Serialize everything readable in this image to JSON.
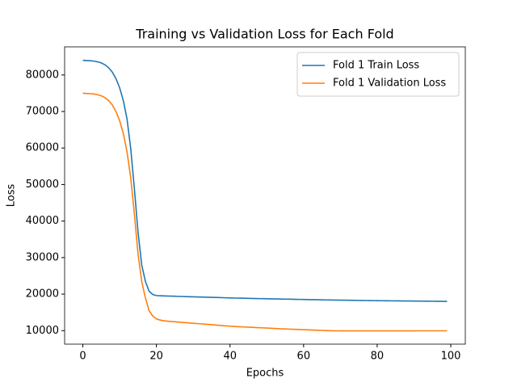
{
  "chart_data": {
    "type": "line",
    "title": "Training vs Validation Loss for Each Fold",
    "xlabel": "Epochs",
    "ylabel": "Loss",
    "x": [
      0,
      1,
      2,
      3,
      4,
      5,
      6,
      7,
      8,
      9,
      10,
      11,
      12,
      13,
      14,
      15,
      16,
      17,
      18,
      19,
      20,
      21,
      22,
      23,
      24,
      25,
      26,
      27,
      28,
      29,
      30,
      31,
      32,
      33,
      34,
      35,
      36,
      37,
      38,
      39,
      40,
      41,
      42,
      43,
      44,
      45,
      46,
      47,
      48,
      49,
      50,
      51,
      52,
      53,
      54,
      55,
      56,
      57,
      58,
      59,
      60,
      61,
      62,
      63,
      64,
      65,
      66,
      67,
      68,
      69,
      70,
      71,
      72,
      73,
      74,
      75,
      76,
      77,
      78,
      79,
      80,
      81,
      82,
      83,
      84,
      85,
      86,
      87,
      88,
      89,
      90,
      91,
      92,
      93,
      94,
      95,
      96,
      97,
      98,
      99
    ],
    "series": [
      {
        "name": "Fold 1 Train Loss",
        "color": "#1f77b4",
        "values": [
          84000,
          83950,
          83900,
          83800,
          83600,
          83300,
          82800,
          82000,
          80800,
          79000,
          76500,
          73000,
          68000,
          60000,
          49000,
          37000,
          28000,
          23500,
          20800,
          19900,
          19600,
          19550,
          19500,
          19470,
          19440,
          19410,
          19380,
          19350,
          19320,
          19290,
          19260,
          19230,
          19200,
          19170,
          19140,
          19110,
          19080,
          19050,
          19020,
          18990,
          18960,
          18935,
          18910,
          18885,
          18860,
          18835,
          18810,
          18790,
          18770,
          18750,
          18730,
          18710,
          18690,
          18670,
          18650,
          18630,
          18610,
          18590,
          18570,
          18550,
          18530,
          18510,
          18490,
          18470,
          18450,
          18430,
          18410,
          18395,
          18380,
          18365,
          18350,
          18335,
          18320,
          18305,
          18290,
          18275,
          18260,
          18245,
          18230,
          18215,
          18200,
          18190,
          18180,
          18170,
          18160,
          18150,
          18140,
          18130,
          18120,
          18110,
          18100,
          18090,
          18080,
          18070,
          18060,
          18050,
          18040,
          18030,
          18020,
          18010
        ]
      },
      {
        "name": "Fold 1 Validation Loss",
        "color": "#ff7f0e",
        "values": [
          75000,
          74950,
          74900,
          74800,
          74600,
          74300,
          73800,
          73000,
          71800,
          70000,
          67500,
          64000,
          59000,
          52000,
          42000,
          31000,
          23500,
          19000,
          15500,
          14000,
          13200,
          12900,
          12700,
          12600,
          12500,
          12420,
          12340,
          12260,
          12180,
          12100,
          12020,
          11940,
          11860,
          11780,
          11700,
          11620,
          11540,
          11460,
          11380,
          11300,
          11220,
          11160,
          11100,
          11050,
          11000,
          10950,
          10900,
          10850,
          10800,
          10750,
          10700,
          10650,
          10600,
          10550,
          10500,
          10460,
          10420,
          10380,
          10340,
          10300,
          10260,
          10220,
          10180,
          10140,
          10100,
          10060,
          10020,
          9990,
          9970,
          9950,
          9940,
          9930,
          9930,
          9930,
          9930,
          9930,
          9935,
          9935,
          9935,
          9935,
          9935,
          9940,
          9940,
          9940,
          9940,
          9940,
          9945,
          9945,
          9945,
          9945,
          9945,
          9950,
          9950,
          9950,
          9950,
          9950,
          9950,
          9950,
          9950,
          9950
        ]
      }
    ],
    "xlim": [
      -4.95,
      103.95
    ],
    "ylim": [
      6300,
      87700
    ],
    "xticks": [
      0,
      20,
      40,
      60,
      80,
      100
    ],
    "yticks": [
      10000,
      20000,
      30000,
      40000,
      50000,
      60000,
      70000,
      80000
    ],
    "legend": "upper right"
  }
}
